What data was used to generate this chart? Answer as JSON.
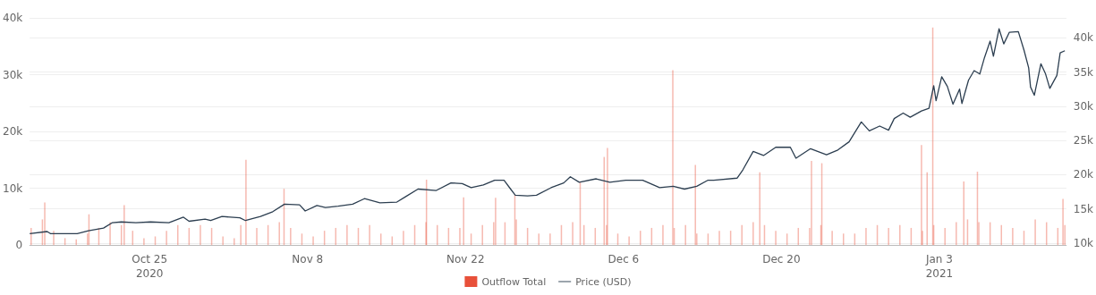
{
  "chart_data": {
    "type": "bar",
    "legend": "bottom",
    "grid": "y",
    "marker": "none",
    "line_style": "solid",
    "xlim": [
      "2020-10-14T09:00",
      "2021-01-14T06:00"
    ],
    "xticks": [
      {
        "value": "2020-10-25",
        "label": "Oct 25\n2020"
      },
      {
        "value": "2020-11-08",
        "label": "Nov 8"
      },
      {
        "value": "2020-11-22",
        "label": "Nov 22"
      },
      {
        "value": "2020-12-06",
        "label": "Dec 6"
      },
      {
        "value": "2020-12-20",
        "label": "Dec 20"
      },
      {
        "value": "2021-01-03",
        "label": "Jan 3\n2021"
      }
    ],
    "ylim": [
      0,
      40000
    ],
    "yticks": [
      {
        "value": 0,
        "label": "0"
      },
      {
        "value": 10000,
        "label": "10k"
      },
      {
        "value": 20000,
        "label": "20k"
      },
      {
        "value": 30000,
        "label": "30k"
      },
      {
        "value": 40000,
        "label": "40k"
      }
    ],
    "y2lim": [
      9740,
      42900
    ],
    "y2ticks": [
      {
        "value": 10000,
        "label": "10k"
      },
      {
        "value": 15000,
        "label": "15k"
      },
      {
        "value": 20000,
        "label": "20k"
      },
      {
        "value": 25000,
        "label": "25k"
      },
      {
        "value": 30000,
        "label": "30k"
      },
      {
        "value": 35000,
        "label": "35k"
      },
      {
        "value": 40000,
        "label": "40k"
      }
    ],
    "series": [
      {
        "name": "Outflow Total",
        "color": "#e8503a",
        "x": [
          "2020-10-14T12:00",
          "2020-10-15T12:00",
          "2020-10-15T17:00",
          "2020-10-16T12:00",
          "2020-10-17T12:00",
          "2020-10-18T12:00",
          "2020-10-19T12:00",
          "2020-10-19T15:00",
          "2020-10-20T12:00",
          "2020-10-21T12:00",
          "2020-10-22T12:00",
          "2020-10-22T18:00",
          "2020-10-23T12:00",
          "2020-10-24T12:00",
          "2020-10-25T12:00",
          "2020-10-26T12:00",
          "2020-10-27T12:00",
          "2020-10-28T12:00",
          "2020-10-29T12:00",
          "2020-10-30T12:00",
          "2020-10-31T12:00",
          "2020-11-01T12:00",
          "2020-11-02T02:00",
          "2020-11-02T13:00",
          "2020-11-03T12:00",
          "2020-11-04T12:00",
          "2020-11-05T12:00",
          "2020-11-05T22:00",
          "2020-11-06T12:00",
          "2020-11-07T12:00",
          "2020-11-08T12:00",
          "2020-11-09T12:00",
          "2020-11-10T12:00",
          "2020-11-11T12:00",
          "2020-11-12T12:00",
          "2020-11-13T12:00",
          "2020-11-14T12:00",
          "2020-11-15T12:00",
          "2020-11-16T12:00",
          "2020-11-17T12:00",
          "2020-11-18T12:00",
          "2020-11-18T13:00",
          "2020-11-19T12:00",
          "2020-11-20T12:00",
          "2020-11-21T12:00",
          "2020-11-21T20:00",
          "2020-11-22T12:00",
          "2020-11-23T12:00",
          "2020-11-24T12:00",
          "2020-11-24T16:00",
          "2020-11-25T12:00",
          "2020-11-26T09:00",
          "2020-11-26T12:00",
          "2020-11-27T12:00",
          "2020-11-28T12:00",
          "2020-11-29T12:00",
          "2020-11-30T12:00",
          "2020-12-01T12:00",
          "2020-12-02T04:00",
          "2020-12-02T12:00",
          "2020-12-03T12:00",
          "2020-12-04T07:00",
          "2020-12-04T12:00",
          "2020-12-04T14:00",
          "2020-12-05T12:00",
          "2020-12-06T12:00",
          "2020-12-07T12:00",
          "2020-12-08T12:00",
          "2020-12-09T12:00",
          "2020-12-10T09:00",
          "2020-12-10T12:00",
          "2020-12-11T12:00",
          "2020-12-12T09:00",
          "2020-12-12T12:00",
          "2020-12-13T12:00",
          "2020-12-14T12:00",
          "2020-12-15T12:00",
          "2020-12-16T12:00",
          "2020-12-17T12:00",
          "2020-12-18T02:00",
          "2020-12-18T12:00",
          "2020-12-19T12:00",
          "2020-12-20T12:00",
          "2020-12-21T12:00",
          "2020-12-22T12:00",
          "2020-12-22T16:00",
          "2020-12-23T12:00",
          "2020-12-23T14:00",
          "2020-12-24T12:00",
          "2020-12-25T12:00",
          "2020-12-26T12:00",
          "2020-12-27T12:00",
          "2020-12-28T12:00",
          "2020-12-29T12:00",
          "2020-12-30T12:00",
          "2020-12-31T12:00",
          "2021-01-01T10:00",
          "2021-01-01T12:00",
          "2021-01-01T22:00",
          "2021-01-02T10:00",
          "2021-01-02T12:00",
          "2021-01-03T12:00",
          "2021-01-04T12:00",
          "2021-01-05T04:00",
          "2021-01-05T12:00",
          "2021-01-06T09:00",
          "2021-01-06T12:00",
          "2021-01-07T12:00",
          "2021-01-08T12:00",
          "2021-01-09T12:00",
          "2021-01-10T12:00",
          "2021-01-11T12:00",
          "2021-01-12T12:00",
          "2021-01-13T12:00",
          "2021-01-13T23:00",
          "2021-01-14T03:00"
        ],
        "values": [
          3000,
          4500,
          7500,
          2500,
          1200,
          1000,
          2000,
          5400,
          3000,
          4000,
          3500,
          7000,
          2500,
          1200,
          1500,
          2500,
          3500,
          3000,
          3500,
          3000,
          1500,
          1200,
          3500,
          15000,
          3000,
          3500,
          4000,
          9900,
          3000,
          2000,
          1500,
          2500,
          3000,
          3500,
          3000,
          3500,
          2000,
          1500,
          2500,
          3500,
          4000,
          11500,
          3500,
          3000,
          3000,
          8400,
          2000,
          3500,
          4000,
          8300,
          4000,
          8800,
          4500,
          3000,
          2000,
          2000,
          3500,
          4000,
          11000,
          3500,
          3000,
          15500,
          3500,
          17100,
          2000,
          1500,
          2500,
          3000,
          3500,
          30800,
          3000,
          3500,
          14100,
          2000,
          2000,
          2500,
          2500,
          3500,
          4000,
          12800,
          3500,
          2500,
          2000,
          3000,
          3000,
          14800,
          3500,
          14400,
          2500,
          2000,
          2000,
          3000,
          3500,
          3000,
          3500,
          3000,
          17600,
          2500,
          12800,
          38300,
          3500,
          3000,
          4000,
          11200,
          4500,
          12900,
          4000,
          4000,
          3500,
          3000,
          2500,
          4500,
          4000,
          3000,
          8100,
          3500
        ]
      },
      {
        "name": "Price (USD)",
        "type": "line",
        "axis": "y2",
        "color": "#2c3e50",
        "x": [
          "2020-10-14T09:00",
          "2020-10-15T22:00",
          "2020-10-16T05:00",
          "2020-10-18T14:00",
          "2020-10-19T14:00",
          "2020-10-20T22:00",
          "2020-10-21T17:00",
          "2020-10-22T12:00",
          "2020-10-23T19:00",
          "2020-10-25T02:00",
          "2020-10-26T17:00",
          "2020-10-28T00:00",
          "2020-10-28T12:00",
          "2020-10-29T22:00",
          "2020-10-30T10:00",
          "2020-10-31T10:00",
          "2020-11-02T00:00",
          "2020-11-02T12:00",
          "2020-11-03T20:00",
          "2020-11-04T22:00",
          "2020-11-05T23:00",
          "2020-11-07T07:00",
          "2020-11-07T19:00",
          "2020-11-08T20:00",
          "2020-11-09T14:00",
          "2020-11-10T17:00",
          "2020-11-12T00:00",
          "2020-11-13T01:00",
          "2020-11-14T10:00",
          "2020-11-15T22:00",
          "2020-11-16T17:00",
          "2020-11-17T19:00",
          "2020-11-19T10:00",
          "2020-11-20T17:00",
          "2020-11-21T17:00",
          "2020-11-22T12:00",
          "2020-11-23T14:00",
          "2020-11-24T14:00",
          "2020-11-25T10:00",
          "2020-11-26T00:00",
          "2020-11-26T10:00",
          "2020-11-27T12:00",
          "2020-11-28T07:00",
          "2020-11-29T14:00",
          "2020-11-30T17:00",
          "2020-12-01T07:00",
          "2020-12-02T02:00",
          "2020-12-03T14:00",
          "2020-12-04T19:00",
          "2020-12-06T05:00",
          "2020-12-07T17:00",
          "2020-12-09T05:00",
          "2020-12-10T10:00",
          "2020-12-11T10:00",
          "2020-12-12T12:00",
          "2020-12-13T12:00",
          "2020-12-14T00:00",
          "2020-12-16T02:00",
          "2020-12-16T14:00",
          "2020-12-17T12:00",
          "2020-12-18T10:00",
          "2020-12-19T12:00",
          "2020-12-20T19:00",
          "2020-12-21T07:00",
          "2020-12-22T14:00",
          "2020-12-24T00:00",
          "2020-12-25T00:00",
          "2020-12-26T00:00",
          "2020-12-27T02:00",
          "2020-12-27T19:00",
          "2020-12-28T17:00",
          "2020-12-29T12:00",
          "2020-12-30T00:00",
          "2020-12-30T19:00",
          "2020-12-31T10:00",
          "2021-01-01T10:00",
          "2021-01-02T02:00",
          "2021-01-02T12:00",
          "2021-01-02T17:00",
          "2021-01-03T05:00",
          "2021-01-03T17:00",
          "2021-01-04T05:00",
          "2021-01-04T19:00",
          "2021-01-05T00:00",
          "2021-01-05T14:00",
          "2021-01-06T02:00",
          "2021-01-06T14:00",
          "2021-01-07T00:00",
          "2021-01-07T12:00",
          "2021-01-07T19:00",
          "2021-01-08T07:00",
          "2021-01-08T17:00",
          "2021-01-09T05:00",
          "2021-01-10T00:00",
          "2021-01-10T12:00",
          "2021-01-10T22:00",
          "2021-01-11T02:00",
          "2021-01-11T10:00",
          "2021-01-12T00:00",
          "2021-01-12T10:00",
          "2021-01-12T19:00",
          "2021-01-13T10:00",
          "2021-01-13T17:00",
          "2021-01-14T03:00"
        ],
        "values": [
          11400,
          11700,
          11400,
          11400,
          11800,
          12200,
          13000,
          13100,
          13000,
          13100,
          13000,
          13800,
          13200,
          13500,
          13300,
          13900,
          13700,
          13300,
          13900,
          14600,
          15700,
          15600,
          14700,
          15500,
          15200,
          15400,
          15700,
          16500,
          15900,
          16000,
          16800,
          17900,
          17700,
          18800,
          18700,
          18100,
          18500,
          19200,
          19200,
          17900,
          17000,
          16900,
          17000,
          18100,
          18800,
          19700,
          18900,
          19400,
          18900,
          19200,
          19200,
          18100,
          18300,
          17900,
          18300,
          19200,
          19200,
          19500,
          20700,
          23400,
          22800,
          24000,
          24000,
          22400,
          23800,
          22900,
          23600,
          24800,
          27700,
          26400,
          27100,
          26500,
          28200,
          29000,
          28400,
          29300,
          29700,
          33000,
          30800,
          34300,
          32900,
          30300,
          32500,
          30400,
          33800,
          35200,
          34700,
          37100,
          39500,
          37300,
          41300,
          39100,
          40800,
          40900,
          38200,
          35600,
          32800,
          31600,
          36200,
          34700,
          32600,
          34500,
          37800,
          38100
        ]
      }
    ]
  }
}
